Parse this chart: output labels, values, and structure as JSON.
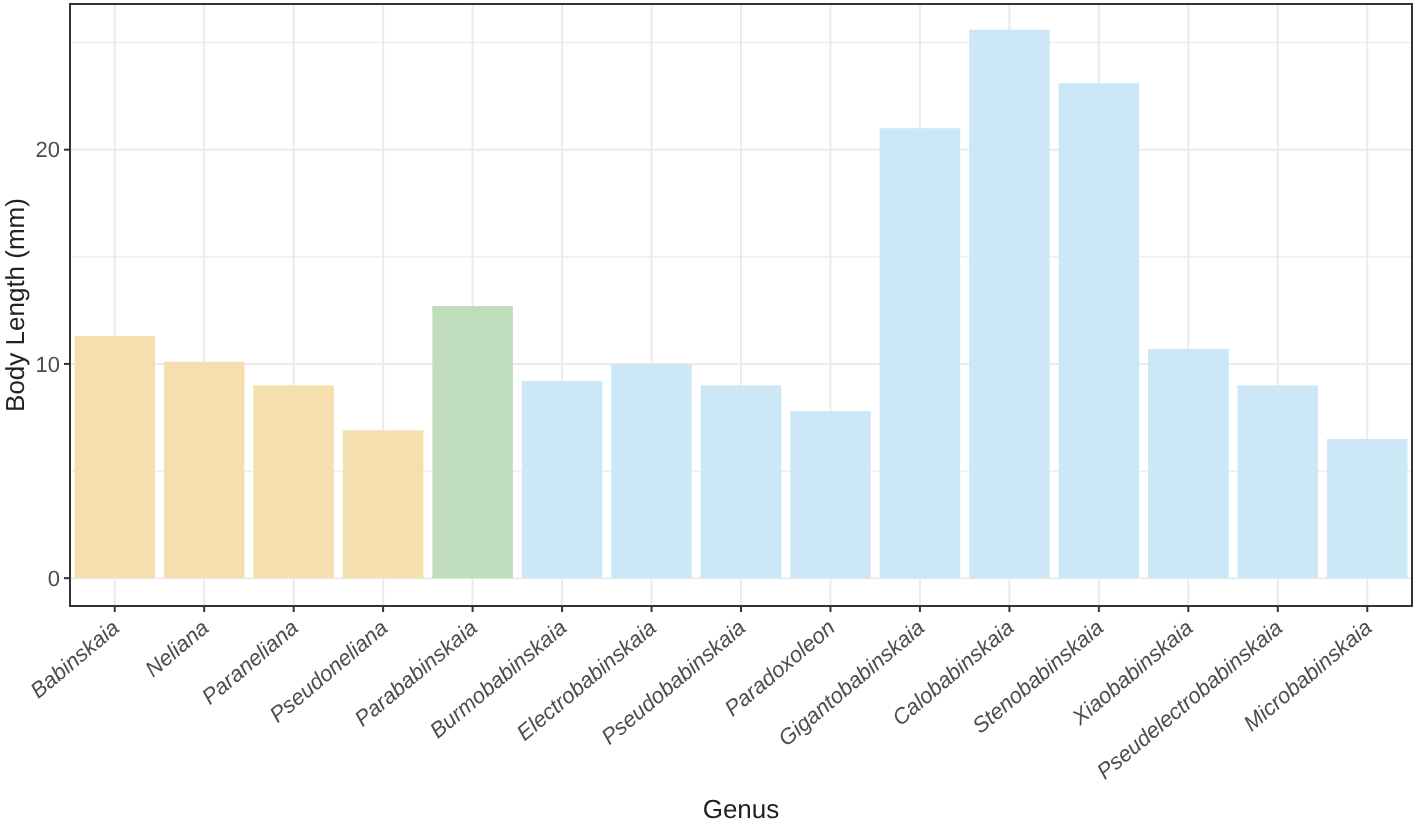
{
  "chart_data": {
    "type": "bar",
    "xlabel": "Genus",
    "ylabel": "Body Length (mm)",
    "categories": [
      "Babinskaia",
      "Neliana",
      "Paraneliana",
      "Pseudoneliana",
      "Parababinskaia",
      "Burmobabinskaia",
      "Electrobabinskaia",
      "Pseudobabinskaia",
      "Paradoxoleon",
      "Gigantobabinskaia",
      "Calobabinskaia",
      "Stenobabinskaia",
      "Xiaobabinskaia",
      "Pseudelectrobabinskaia",
      "Microbabinskaia"
    ],
    "values": [
      11.3,
      10.1,
      9.0,
      6.9,
      12.7,
      9.2,
      10.0,
      9.0,
      7.8,
      21.0,
      25.6,
      23.1,
      10.7,
      9.0,
      6.5
    ],
    "colors": [
      "#f6dfae",
      "#f6dfae",
      "#f6dfae",
      "#f6dfae",
      "#bfdcbc",
      "#cce7f6",
      "#cce7f6",
      "#cce7f6",
      "#cce7f6",
      "#cce7f6",
      "#cce7f6",
      "#cce7f6",
      "#cce7f6",
      "#cce7f6",
      "#cce7f6"
    ],
    "ylim": [
      -1.3,
      26.8
    ],
    "yticks": [
      0,
      {
        "value": 5,
        "label": null
      },
      10,
      {
        "value": 15,
        "label": null
      },
      20,
      {
        "value": 25,
        "label": null
      }
    ],
    "grid": true
  }
}
